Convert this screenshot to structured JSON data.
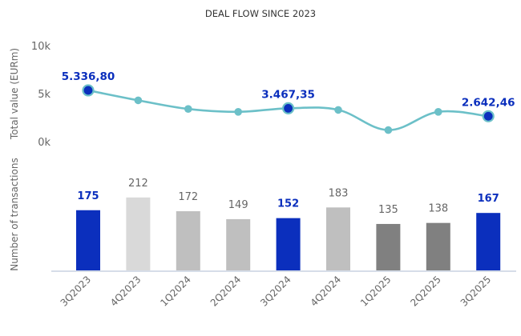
{
  "chart_data": [
    {
      "type": "line",
      "title": "DEAL FLOW SINCE 2023",
      "ylabel": "Total value (EURm)",
      "xlabel": "",
      "ylim": [
        0,
        10000
      ],
      "yticks": [
        {
          "value": 10000,
          "label": "10k"
        },
        {
          "value": 5000,
          "label": "5k"
        },
        {
          "value": 0,
          "label": "0k"
        }
      ],
      "grid": false,
      "categories": [
        "3Q2023",
        "4Q2023",
        "1Q2024",
        "2Q2024",
        "3Q2024",
        "4Q2024",
        "1Q2025",
        "2Q2025",
        "3Q2025"
      ],
      "series": [
        {
          "name": "Total value (EURm)",
          "values": [
            5336.8,
            4300,
            3400,
            3100,
            3467.35,
            3300,
            1200,
            3100,
            2642.46
          ],
          "highlighted": [
            true,
            false,
            false,
            false,
            true,
            false,
            false,
            false,
            true
          ],
          "data_labels": [
            "5.336,80",
            "",
            "",
            "",
            "3.467,35",
            "",
            "",
            "",
            "2.642,46"
          ]
        }
      ],
      "colors": {
        "line": "#6cc0c8",
        "highlight": "#0b2fbd"
      }
    },
    {
      "type": "bar",
      "ylabel": "Number of transactions",
      "xlabel": "",
      "ylim": [
        0,
        250
      ],
      "grid": false,
      "categories": [
        "3Q2023",
        "4Q2023",
        "1Q2024",
        "2Q2024",
        "3Q2024",
        "4Q2024",
        "1Q2025",
        "2Q2025",
        "3Q2025"
      ],
      "values": [
        175,
        212,
        172,
        149,
        152,
        183,
        135,
        138,
        167
      ],
      "bar_colors": [
        "#0b2fbd",
        "#d9d9d9",
        "#bfbfbf",
        "#bfbfbf",
        "#0b2fbd",
        "#bfbfbf",
        "#808080",
        "#808080",
        "#0b2fbd"
      ],
      "highlighted": [
        true,
        false,
        false,
        false,
        true,
        false,
        false,
        false,
        true
      ],
      "colors": {
        "baseline": "#d6dde8"
      }
    }
  ]
}
